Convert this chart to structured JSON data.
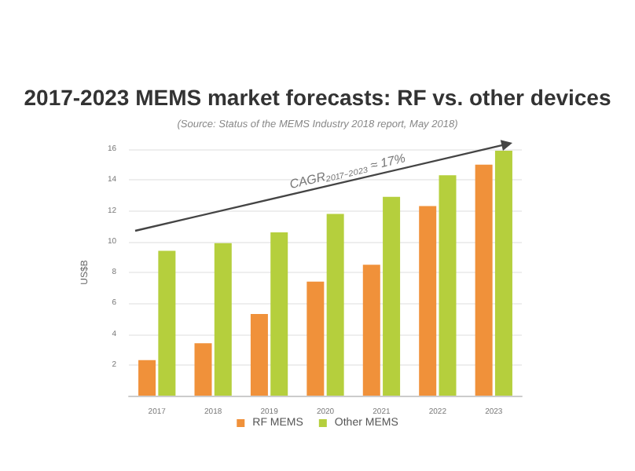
{
  "chart_data": {
    "type": "bar",
    "title": "2017-2023 MEMS market forecasts: RF vs. other devices",
    "subtitle": "(Source: Status of the MEMS Industry 2018 report, May 2018)",
    "ylabel": "US$B",
    "categories": [
      "2017",
      "2018",
      "2019",
      "2020",
      "2021",
      "2022",
      "2023"
    ],
    "series": [
      {
        "name": "RF MEMS",
        "color": "#f0913a",
        "values": [
          2.3,
          3.4,
          5.3,
          7.4,
          8.5,
          12.3,
          15.0
        ]
      },
      {
        "name": "Other MEMS",
        "color": "#b5cf3d",
        "values": [
          9.4,
          9.9,
          10.6,
          11.8,
          12.9,
          14.3,
          15.9
        ]
      }
    ],
    "ylim": [
      0,
      16
    ],
    "yticks": [
      2,
      4,
      6,
      8,
      10,
      12,
      14,
      16
    ],
    "grid": "y",
    "legend": "bottom",
    "annotations": [
      "CAGR₂₀₁₇₋₂₀₂₃ ≈ 17%"
    ]
  }
}
